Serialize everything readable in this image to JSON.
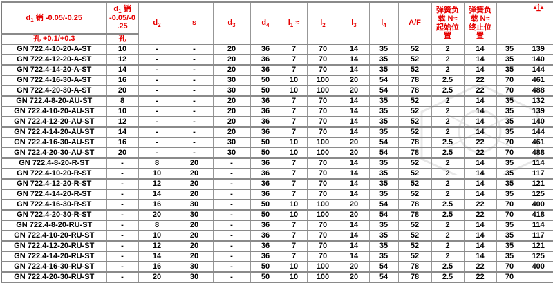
{
  "colors": {
    "header_text": "#e60000",
    "body_text": "#000000",
    "grid_line": "#8a8a8a",
    "background": "#ffffff",
    "watermark": "#e7e7e7"
  },
  "icons": {
    "weight_column": "balance-scale-icon"
  },
  "table": {
    "header": {
      "columns": [
        {
          "id": "article",
          "h1": [
            {
              "t": "d"
            },
            {
              "t": "1",
              "sub": true
            },
            {
              "t": " 销 -0.05/-0.25"
            }
          ],
          "h2": [
            {
              "t": "孔 +0.1/+0.3"
            }
          ]
        },
        {
          "id": "d1",
          "h1": [
            {
              "t": "d"
            },
            {
              "t": "1",
              "sub": true
            },
            {
              "t": " 销 -0.05/-0.25"
            }
          ],
          "h2": [
            {
              "t": "孔"
            }
          ]
        },
        {
          "id": "d2",
          "h1": [
            {
              "t": "d"
            },
            {
              "t": "2",
              "sub": true
            }
          ]
        },
        {
          "id": "s",
          "h1": [
            {
              "t": "s"
            }
          ]
        },
        {
          "id": "d3",
          "h1": [
            {
              "t": "d"
            },
            {
              "t": "3",
              "sub": true
            }
          ]
        },
        {
          "id": "d4",
          "h1": [
            {
              "t": "d"
            },
            {
              "t": "4",
              "sub": true
            }
          ]
        },
        {
          "id": "l1",
          "h1": [
            {
              "t": "l"
            },
            {
              "t": "1",
              "sub": true
            },
            {
              "t": " ≈"
            }
          ]
        },
        {
          "id": "l2",
          "h1": [
            {
              "t": "l"
            },
            {
              "t": "2",
              "sub": true
            }
          ]
        },
        {
          "id": "l3",
          "h1": [
            {
              "t": "l"
            },
            {
              "t": "3",
              "sub": true
            }
          ]
        },
        {
          "id": "l4",
          "h1": [
            {
              "t": "l"
            },
            {
              "t": "4",
              "sub": true
            }
          ]
        },
        {
          "id": "af",
          "h1": [
            {
              "t": "A/F"
            }
          ]
        },
        {
          "id": "spring_start",
          "h1": [
            {
              "t": "弹簧负载 N≈ 起始位置"
            }
          ]
        },
        {
          "id": "spring_end",
          "h1": [
            {
              "t": "弹簧负载 N≈ 终止位置"
            }
          ]
        },
        {
          "id": "unlabeled",
          "h1": []
        },
        {
          "id": "weight",
          "h1": [],
          "icon": "balance-scale-icon"
        }
      ]
    },
    "rows": [
      [
        "GN 722.4-10-20-A-ST",
        "10",
        "-",
        "-",
        "20",
        "36",
        "7",
        "70",
        "14",
        "35",
        "52",
        "2",
        "14",
        "35",
        "139"
      ],
      [
        "GN 722.4-12-20-A-ST",
        "12",
        "-",
        "-",
        "20",
        "36",
        "7",
        "70",
        "14",
        "35",
        "52",
        "2",
        "14",
        "35",
        "140"
      ],
      [
        "GN 722.4-14-20-A-ST",
        "14",
        "-",
        "-",
        "20",
        "36",
        "7",
        "70",
        "14",
        "35",
        "52",
        "2",
        "14",
        "35",
        "144"
      ],
      [
        "GN 722.4-16-30-A-ST",
        "16",
        "-",
        "-",
        "30",
        "50",
        "10",
        "100",
        "20",
        "54",
        "78",
        "2.5",
        "22",
        "70",
        "461"
      ],
      [
        "GN 722.4-20-30-A-ST",
        "20",
        "-",
        "-",
        "30",
        "50",
        "10",
        "100",
        "20",
        "54",
        "78",
        "2.5",
        "22",
        "70",
        "488"
      ],
      [
        "GN 722.4-8-20-AU-ST",
        "8",
        "-",
        "-",
        "20",
        "36",
        "7",
        "70",
        "14",
        "35",
        "52",
        "2",
        "14",
        "35",
        "132"
      ],
      [
        "GN 722.4-10-20-AU-ST",
        "10",
        "-",
        "-",
        "20",
        "36",
        "7",
        "70",
        "14",
        "35",
        "52",
        "2",
        "14",
        "35",
        "139"
      ],
      [
        "GN 722.4-12-20-AU-ST",
        "12",
        "-",
        "-",
        "20",
        "36",
        "7",
        "70",
        "14",
        "35",
        "52",
        "2",
        "14",
        "35",
        "140"
      ],
      [
        "GN 722.4-14-20-AU-ST",
        "14",
        "-",
        "-",
        "20",
        "36",
        "7",
        "70",
        "14",
        "35",
        "52",
        "2",
        "14",
        "35",
        "144"
      ],
      [
        "GN 722.4-16-30-AU-ST",
        "16",
        "-",
        "-",
        "30",
        "50",
        "10",
        "100",
        "20",
        "54",
        "78",
        "2.5",
        "22",
        "70",
        "461"
      ],
      [
        "GN 722.4-20-30-AU-ST",
        "20",
        "-",
        "-",
        "30",
        "50",
        "10",
        "100",
        "20",
        "54",
        "78",
        "2.5",
        "22",
        "70",
        "488"
      ],
      [
        "GN 722.4-8-20-R-ST",
        "-",
        "8",
        "20",
        "-",
        "36",
        "7",
        "70",
        "14",
        "35",
        "52",
        "2",
        "14",
        "35",
        "114"
      ],
      [
        "GN 722.4-10-20-R-ST",
        "-",
        "10",
        "20",
        "-",
        "36",
        "7",
        "70",
        "14",
        "35",
        "52",
        "2",
        "14",
        "35",
        "117"
      ],
      [
        "GN 722.4-12-20-R-ST",
        "-",
        "12",
        "20",
        "-",
        "36",
        "7",
        "70",
        "14",
        "35",
        "52",
        "2",
        "14",
        "35",
        "121"
      ],
      [
        "GN 722.4-14-20-R-ST",
        "-",
        "14",
        "20",
        "-",
        "36",
        "7",
        "70",
        "14",
        "35",
        "52",
        "2",
        "14",
        "35",
        "125"
      ],
      [
        "GN 722.4-16-30-R-ST",
        "-",
        "16",
        "30",
        "-",
        "50",
        "10",
        "100",
        "20",
        "54",
        "78",
        "2.5",
        "22",
        "70",
        "400"
      ],
      [
        "GN 722.4-20-30-R-ST",
        "-",
        "20",
        "30",
        "-",
        "50",
        "10",
        "100",
        "20",
        "54",
        "78",
        "2.5",
        "22",
        "70",
        "418"
      ],
      [
        "GN 722.4-8-20-RU-ST",
        "-",
        "8",
        "20",
        "-",
        "36",
        "7",
        "70",
        "14",
        "35",
        "52",
        "2",
        "14",
        "35",
        "114"
      ],
      [
        "GN 722.4-10-20-RU-ST",
        "-",
        "10",
        "20",
        "-",
        "36",
        "7",
        "70",
        "14",
        "35",
        "52",
        "2",
        "14",
        "35",
        "117"
      ],
      [
        "GN 722.4-12-20-RU-ST",
        "-",
        "12",
        "20",
        "-",
        "36",
        "7",
        "70",
        "14",
        "35",
        "52",
        "2",
        "14",
        "35",
        "121"
      ],
      [
        "GN 722.4-14-20-RU-ST",
        "-",
        "14",
        "20",
        "-",
        "36",
        "7",
        "70",
        "14",
        "35",
        "52",
        "2",
        "14",
        "35",
        "125"
      ],
      [
        "GN 722.4-16-30-RU-ST",
        "-",
        "16",
        "30",
        "-",
        "50",
        "10",
        "100",
        "20",
        "54",
        "78",
        "2.5",
        "22",
        "70",
        "400"
      ],
      [
        "GN 722.4-20-30-RU-ST",
        "-",
        "20",
        "30",
        "-",
        "50",
        "10",
        "100",
        "20",
        "54",
        "78",
        "2.5",
        "22",
        "70",
        ""
      ]
    ]
  }
}
